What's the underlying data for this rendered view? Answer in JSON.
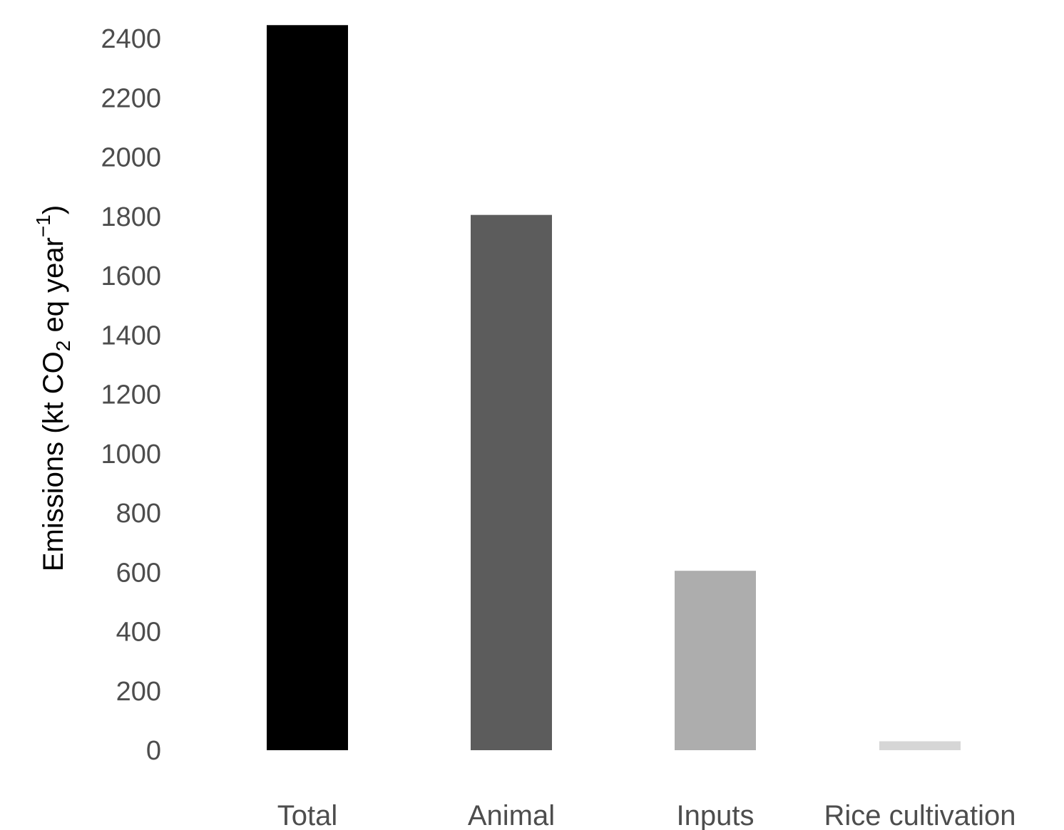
{
  "chart_data": {
    "type": "bar",
    "categories": [
      "Total",
      "Animal",
      "Inputs",
      "Rice cultivation"
    ],
    "values": [
      2445,
      1805,
      605,
      30
    ],
    "colors": [
      "#000000",
      "#5c5c5c",
      "#adadad",
      "#d6d6d6"
    ],
    "ylabel": {
      "prefix": "Emissions (kt CO",
      "subscript": "2",
      "middle": " eq year",
      "superscript": "−1",
      "suffix": ")"
    },
    "ylim": [
      0,
      2445
    ],
    "yticks": [
      "0",
      "200",
      "400",
      "600",
      "800",
      "1000",
      "1200",
      "1400",
      "1600",
      "1800",
      "2000",
      "2200",
      "2400"
    ],
    "grid": false,
    "legend": "none"
  }
}
